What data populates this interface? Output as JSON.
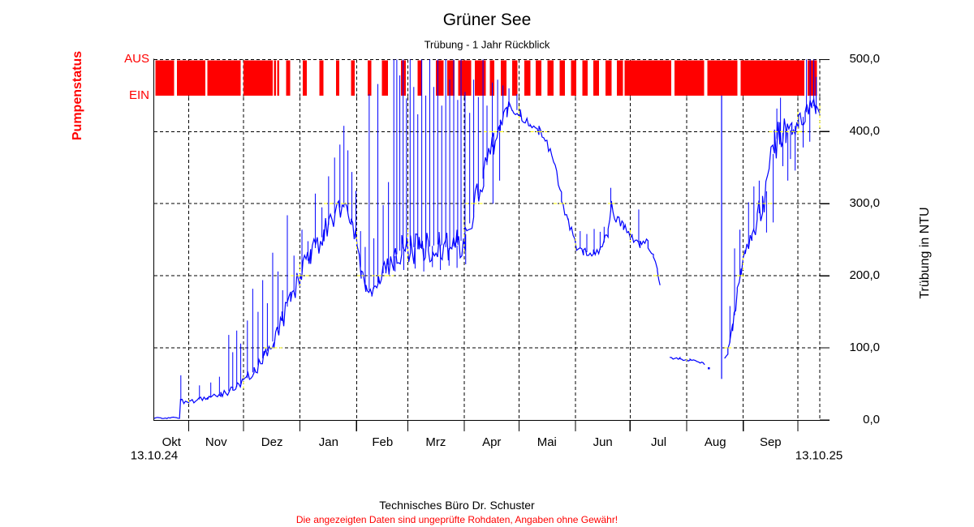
{
  "title": "Grüner See",
  "subtitle": "Trübung - 1 Jahr Rückblick",
  "left_axis": {
    "label": "Pumpenstatus",
    "off_label": "AUS",
    "on_label": "EIN"
  },
  "right_axis": {
    "label": "Trübung in NTU",
    "tick_labels": [
      "500,0",
      "400,0",
      "300,0",
      "200,0",
      "100,0",
      "0,0"
    ],
    "tick_values": [
      500,
      400,
      300,
      200,
      100,
      0
    ]
  },
  "x_axis": {
    "start_date": "13.10.24",
    "end_date": "13.10.25",
    "months": [
      "Okt",
      "Nov",
      "Dez",
      "Jan",
      "Feb",
      "Mrz",
      "Apr",
      "Mai",
      "Jun",
      "Jul",
      "Aug",
      "Sep"
    ]
  },
  "footer": {
    "line1": "Technisches Büro Dr. Schuster",
    "line2": "Die angezeigten Daten sind ungeprüfte Rohdaten, Angaben ohne Gewähr!"
  },
  "colors": {
    "pump": "#ff0000",
    "series": "#0000ff",
    "grid": "#000000",
    "grid_xor": "#ffff00",
    "text_red": "#ff0000"
  },
  "chart_data": {
    "type": "line",
    "title": "Grüner See",
    "subtitle": "Trübung - 1 Jahr Rückblick",
    "ylabel": "Trübung in NTU",
    "ylim": [
      0,
      500
    ],
    "x_range": [
      "13.10.24",
      "13.10.25"
    ],
    "grid": "dashed",
    "month_start_fracs": [
      0.052,
      0.134,
      0.219,
      0.304,
      0.381,
      0.466,
      0.548,
      0.633,
      0.715,
      0.8,
      0.885,
      0.967
    ],
    "month_center_fracs": [
      0.026,
      0.093,
      0.177,
      0.262,
      0.343,
      0.423,
      0.507,
      0.59,
      0.674,
      0.758,
      0.843,
      0.926
    ],
    "pump_band_ntu": [
      450,
      500
    ],
    "pump_on_segments": [
      [
        0.002,
        0.03
      ],
      [
        0.034,
        0.077
      ],
      [
        0.08,
        0.13
      ],
      [
        0.134,
        0.178
      ],
      [
        0.18,
        0.183
      ],
      [
        0.185,
        0.188
      ],
      [
        0.198,
        0.204
      ],
      [
        0.223,
        0.229
      ],
      [
        0.248,
        0.254
      ],
      [
        0.273,
        0.278
      ],
      [
        0.296,
        0.301
      ],
      [
        0.321,
        0.326
      ],
      [
        0.342,
        0.351
      ],
      [
        0.371,
        0.378
      ],
      [
        0.396,
        0.402
      ],
      [
        0.423,
        0.435
      ],
      [
        0.44,
        0.451
      ],
      [
        0.457,
        0.476
      ],
      [
        0.482,
        0.498
      ],
      [
        0.504,
        0.511
      ],
      [
        0.521,
        0.529
      ],
      [
        0.538,
        0.546
      ],
      [
        0.556,
        0.565
      ],
      [
        0.573,
        0.582
      ],
      [
        0.591,
        0.6
      ],
      [
        0.609,
        0.617
      ],
      [
        0.626,
        0.634
      ],
      [
        0.643,
        0.651
      ],
      [
        0.66,
        0.668
      ],
      [
        0.678,
        0.687
      ],
      [
        0.695,
        0.704
      ],
      [
        0.707,
        0.777
      ],
      [
        0.782,
        0.826
      ],
      [
        0.831,
        0.876
      ],
      [
        0.881,
        0.977
      ],
      [
        0.982,
        0.996
      ]
    ],
    "series": [
      {
        "name": "Trübung",
        "segments": [
          {
            "points": [
              [
                0.0,
                3,
                1
              ],
              [
                0.038,
                3,
                1
              ],
              [
                0.0395,
                26,
                3
              ],
              [
                0.052,
                25,
                3
              ],
              [
                0.08,
                31,
                3
              ],
              [
                0.1,
                36,
                4
              ],
              [
                0.118,
                42,
                6
              ],
              [
                0.134,
                52,
                8
              ],
              [
                0.15,
                68,
                10
              ],
              [
                0.165,
                88,
                10
              ],
              [
                0.18,
                112,
                12
              ],
              [
                0.192,
                140,
                16
              ],
              [
                0.205,
                168,
                18
              ],
              [
                0.219,
                200,
                16
              ],
              [
                0.235,
                228,
                18
              ],
              [
                0.255,
                258,
                18
              ],
              [
                0.272,
                288,
                18
              ],
              [
                0.285,
                300,
                16
              ],
              [
                0.296,
                278,
                14
              ],
              [
                0.305,
                245,
                12
              ],
              [
                0.311,
                205,
                10
              ],
              [
                0.318,
                182,
                8
              ],
              [
                0.327,
                178,
                8
              ],
              [
                0.337,
                192,
                10
              ],
              [
                0.348,
                210,
                14
              ],
              [
                0.36,
                225,
                20
              ],
              [
                0.372,
                238,
                22
              ],
              [
                0.385,
                242,
                24
              ],
              [
                0.398,
                236,
                24
              ],
              [
                0.412,
                240,
                25
              ],
              [
                0.428,
                244,
                25
              ],
              [
                0.442,
                238,
                25
              ],
              [
                0.455,
                242,
                24
              ],
              [
                0.467,
                255,
                24
              ],
              [
                0.48,
                288,
                25
              ],
              [
                0.495,
                338,
                22
              ],
              [
                0.51,
                385,
                18
              ],
              [
                0.52,
                412,
                14
              ],
              [
                0.53,
                432,
                12
              ],
              [
                0.538,
                438,
                10
              ],
              [
                0.55,
                424,
                9
              ],
              [
                0.565,
                414,
                8
              ],
              [
                0.578,
                402,
                7
              ],
              [
                0.59,
                385,
                8
              ],
              [
                0.6,
                362,
                8
              ],
              [
                0.612,
                308,
                9
              ],
              [
                0.622,
                275,
                8
              ],
              [
                0.632,
                245,
                8
              ],
              [
                0.645,
                234,
                7
              ],
              [
                0.66,
                230,
                7
              ],
              [
                0.673,
                238,
                8
              ],
              [
                0.682,
                262,
                9
              ],
              [
                0.687,
                296,
                10
              ],
              [
                0.694,
                282,
                9
              ],
              [
                0.705,
                266,
                8
              ],
              [
                0.718,
                252,
                8
              ],
              [
                0.73,
                242,
                7
              ],
              [
                0.742,
                246,
                8
              ],
              [
                0.75,
                230,
                7
              ],
              [
                0.756,
                205,
                6
              ],
              [
                0.76,
                186,
                4
              ]
            ]
          },
          {
            "points": [
              [
                0.7745,
                86,
                2
              ],
              [
                0.79,
                85,
                2
              ],
              [
                0.805,
                83,
                2
              ],
              [
                0.818,
                80,
                2
              ],
              [
                0.827,
                77,
                2
              ]
            ]
          },
          {
            "points": [
              [
                0.857,
                84,
                3
              ],
              [
                0.862,
                94,
                6
              ],
              [
                0.869,
                125,
                10
              ],
              [
                0.876,
                172,
                12
              ],
              [
                0.882,
                208,
                13
              ],
              [
                0.888,
                228,
                14
              ],
              [
                0.898,
                255,
                16
              ],
              [
                0.906,
                280,
                18
              ],
              [
                0.914,
                298,
                20
              ],
              [
                0.924,
                330,
                32
              ],
              [
                0.932,
                382,
                30
              ],
              [
                0.94,
                400,
                26
              ],
              [
                0.949,
                396,
                20
              ],
              [
                0.958,
                404,
                18
              ],
              [
                0.968,
                412,
                16
              ],
              [
                0.978,
                424,
                15
              ],
              [
                0.988,
                438,
                13
              ],
              [
                0.994,
                432,
                14
              ],
              [
                1.0,
                420,
                16
              ]
            ]
          }
        ],
        "spikes_up": [
          [
            0.04,
            62
          ],
          [
            0.068,
            48
          ],
          [
            0.085,
            52
          ],
          [
            0.098,
            60
          ],
          [
            0.112,
            118
          ],
          [
            0.118,
            94
          ],
          [
            0.124,
            124
          ],
          [
            0.13,
            106
          ],
          [
            0.14,
            138
          ],
          [
            0.148,
            182
          ],
          [
            0.156,
            150
          ],
          [
            0.163,
            194
          ],
          [
            0.17,
            162
          ],
          [
            0.178,
            232
          ],
          [
            0.186,
            206
          ],
          [
            0.193,
            180
          ],
          [
            0.2,
            284
          ],
          [
            0.21,
            228
          ],
          [
            0.222,
            264
          ],
          [
            0.231,
            248
          ],
          [
            0.242,
            314
          ],
          [
            0.252,
            295
          ],
          [
            0.262,
            338
          ],
          [
            0.271,
            364
          ],
          [
            0.279,
            382
          ],
          [
            0.285,
            408
          ],
          [
            0.291,
            374
          ],
          [
            0.297,
            344
          ],
          [
            0.303,
            318
          ],
          [
            0.31,
            262
          ],
          [
            0.317,
            240
          ],
          [
            0.323,
            452
          ],
          [
            0.33,
            252
          ],
          [
            0.336,
            466
          ],
          [
            0.344,
            298
          ],
          [
            0.352,
            330
          ],
          [
            0.36,
            500
          ],
          [
            0.3645,
            500
          ],
          [
            0.369,
            478
          ],
          [
            0.374,
            500
          ],
          [
            0.379,
            446
          ],
          [
            0.3845,
            500
          ],
          [
            0.39,
            462
          ],
          [
            0.396,
            424
          ],
          [
            0.402,
            500
          ],
          [
            0.408,
            450
          ],
          [
            0.414,
            500
          ],
          [
            0.42,
            462
          ],
          [
            0.426,
            500
          ],
          [
            0.432,
            436
          ],
          [
            0.438,
            500
          ],
          [
            0.444,
            472
          ],
          [
            0.45,
            500
          ],
          [
            0.456,
            444
          ],
          [
            0.461,
            500
          ],
          [
            0.467,
            455
          ],
          [
            0.474,
            426
          ],
          [
            0.48,
            472
          ],
          [
            0.487,
            448
          ],
          [
            0.494,
            500
          ],
          [
            0.5,
            436
          ],
          [
            0.508,
            468
          ],
          [
            0.516,
            472
          ],
          [
            0.524,
            464
          ],
          [
            0.533,
            460
          ],
          [
            0.545,
            452
          ],
          [
            0.64,
            262
          ],
          [
            0.65,
            258
          ],
          [
            0.661,
            265
          ],
          [
            0.67,
            261
          ],
          [
            0.676,
            268
          ],
          [
            0.686,
            322
          ],
          [
            0.728,
            292
          ],
          [
            0.865,
            158
          ],
          [
            0.872,
            238
          ],
          [
            0.88,
            264
          ],
          [
            0.893,
            302
          ],
          [
            0.901,
            324
          ],
          [
            0.909,
            332
          ],
          [
            0.9355,
            432
          ],
          [
            0.941,
            447
          ],
          [
            0.98,
            500
          ],
          [
            0.9855,
            500
          ],
          [
            0.991,
            500
          ],
          [
            0.9945,
            476
          ]
        ],
        "spikes_down": [
          [
            0.362,
            206
          ],
          [
            0.375,
            208
          ],
          [
            0.392,
            210
          ],
          [
            0.405,
            206
          ],
          [
            0.418,
            212
          ],
          [
            0.43,
            208
          ],
          [
            0.443,
            214
          ],
          [
            0.455,
            211
          ],
          [
            0.468,
            216
          ],
          [
            0.509,
            300
          ],
          [
            0.519,
            332
          ],
          [
            0.92,
            260
          ],
          [
            0.93,
            274
          ],
          [
            0.9445,
            352
          ],
          [
            0.952,
            332
          ],
          [
            0.956,
            362
          ],
          [
            0.963,
            346
          ],
          [
            0.975,
            378
          ],
          [
            0.985,
            386
          ]
        ],
        "vlines": [
          [
            0.8525,
            57,
            450
          ]
        ],
        "dots": [
          [
            0.833,
            72
          ]
        ]
      }
    ]
  }
}
